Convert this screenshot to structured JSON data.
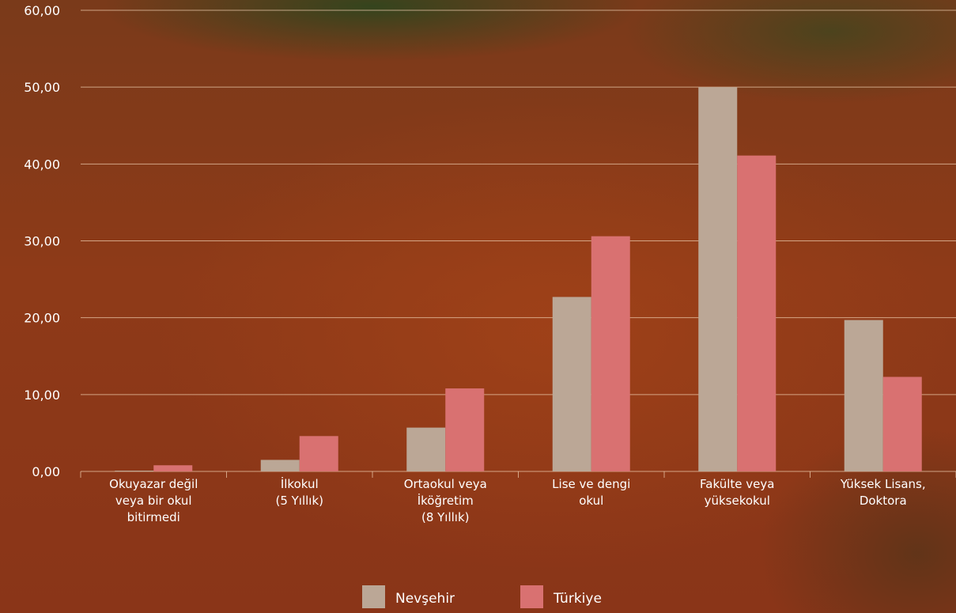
{
  "chart_data": {
    "type": "bar",
    "categories": [
      [
        "Okuyazar değil",
        "veya bir okul",
        "bitirmedi"
      ],
      [
        "İlkokul",
        "(5 Yıllık)"
      ],
      [
        "Ortaokul veya",
        "İköğretim",
        "(8 Yıllık)"
      ],
      [
        "Lise ve dengi",
        "okul"
      ],
      [
        "Fakülte veya",
        "yüksekokul"
      ],
      [
        "Yüksek Lisans,",
        "Doktora"
      ]
    ],
    "series": [
      {
        "name": "Nevşehir",
        "color": "#bba796",
        "values": [
          0.1,
          1.5,
          5.7,
          22.7,
          50.0,
          19.7
        ]
      },
      {
        "name": "Türkiye",
        "color": "#d97171",
        "values": [
          0.8,
          4.6,
          10.8,
          30.6,
          41.1,
          12.3
        ]
      }
    ],
    "yticks": [
      "0,00",
      "10,00",
      "20,00",
      "30,00",
      "40,00",
      "50,00",
      "60,00"
    ],
    "ylim": [
      0,
      60
    ],
    "grid": true,
    "legend_position": "bottom"
  }
}
